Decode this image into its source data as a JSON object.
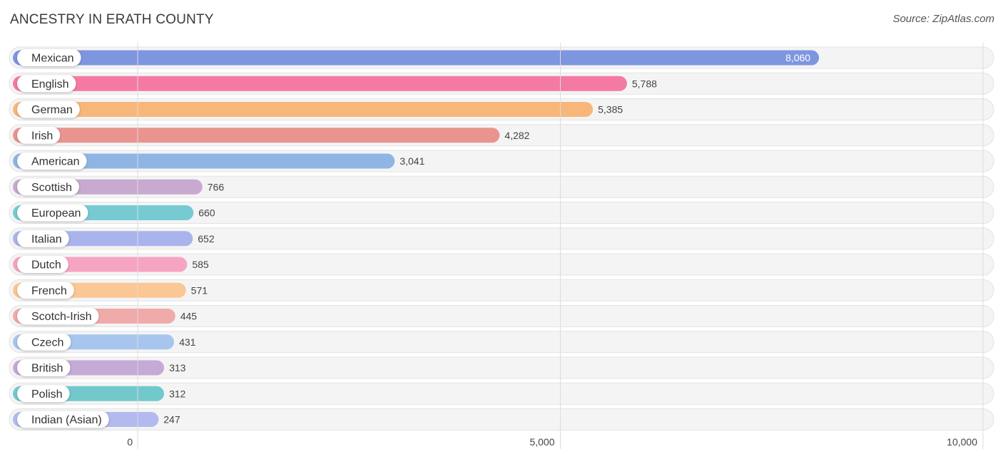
{
  "chart_data": {
    "type": "bar",
    "orientation": "horizontal",
    "title": "ANCESTRY IN ERATH COUNTY",
    "source": "Source: ZipAtlas.com",
    "xlim": [
      0,
      10000
    ],
    "ticks": [
      0,
      5000,
      10000
    ],
    "tick_labels": [
      "0",
      "5,000",
      "10,000"
    ],
    "grid": true,
    "categories": [
      "Mexican",
      "English",
      "German",
      "Irish",
      "American",
      "Scottish",
      "European",
      "Italian",
      "Dutch",
      "French",
      "Scotch-Irish",
      "Czech",
      "British",
      "Polish",
      "Indian (Asian)"
    ],
    "values": [
      8060,
      5788,
      5385,
      4282,
      3041,
      766,
      660,
      652,
      585,
      571,
      445,
      431,
      313,
      312,
      247
    ],
    "value_labels": [
      "8,060",
      "5,788",
      "5,385",
      "4,282",
      "3,041",
      "766",
      "660",
      "652",
      "585",
      "571",
      "445",
      "431",
      "313",
      "312",
      "247"
    ],
    "colors": [
      "#7e95e0",
      "#f47aa3",
      "#f8b77a",
      "#ea9490",
      "#8fb5e5",
      "#c8a9d0",
      "#76cbd2",
      "#aab4ec",
      "#f7a4c2",
      "#fbc794",
      "#f0aaaa",
      "#a7c6ee",
      "#c5a9d6",
      "#72c9cc",
      "#b2baee"
    ]
  }
}
